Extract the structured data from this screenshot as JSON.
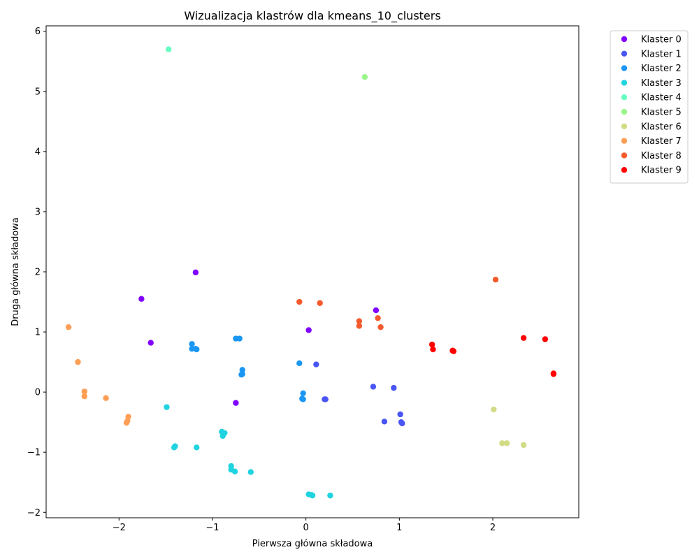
{
  "chart_data": {
    "type": "scatter",
    "title": "Wizualizacja klastrów dla kmeans_10_clusters",
    "xlabel": "Pierwsza główna składowa",
    "ylabel": "Druga główna składowa",
    "xlim": [
      -2.78,
      2.92
    ],
    "ylim": [
      -2.09,
      6.09
    ],
    "xticks": [
      -2,
      -1,
      0,
      1,
      2
    ],
    "xtick_labels": [
      "−2",
      "−1",
      "0",
      "1",
      "2"
    ],
    "yticks": [
      -2,
      -1,
      0,
      1,
      2,
      3,
      4,
      5,
      6
    ],
    "ytick_labels": [
      "−2",
      "−1",
      "0",
      "1",
      "2",
      "3",
      "4",
      "5",
      "6"
    ],
    "grid": false,
    "legend_position": "outside-top-right",
    "series": [
      {
        "name": "Klaster 0",
        "color": "#8000ff",
        "points": [
          [
            -1.18,
            1.99
          ],
          [
            -1.76,
            1.55
          ],
          [
            -1.66,
            0.82
          ],
          [
            0.75,
            1.36
          ],
          [
            0.03,
            1.03
          ],
          [
            -0.75,
            -0.18
          ]
        ]
      },
      {
        "name": "Klaster 1",
        "color": "#4a55f5",
        "points": [
          [
            0.11,
            0.46
          ],
          [
            0.72,
            0.09
          ],
          [
            0.94,
            0.07
          ],
          [
            0.2,
            -0.12
          ],
          [
            0.21,
            -0.12
          ],
          [
            1.01,
            -0.37
          ],
          [
            0.84,
            -0.49
          ],
          [
            1.02,
            -0.5
          ],
          [
            1.03,
            -0.52
          ]
        ]
      },
      {
        "name": "Klaster 2",
        "color": "#1a96f3",
        "points": [
          [
            -1.22,
            0.8
          ],
          [
            -1.22,
            0.72
          ],
          [
            -1.17,
            0.71
          ],
          [
            -1.18,
            0.72
          ],
          [
            -0.75,
            0.89
          ],
          [
            -0.71,
            0.89
          ],
          [
            -0.68,
            0.37
          ],
          [
            -0.69,
            0.29
          ],
          [
            -0.68,
            0.3
          ],
          [
            -0.07,
            0.48
          ],
          [
            -0.03,
            -0.02
          ],
          [
            -0.04,
            -0.11
          ],
          [
            -0.03,
            -0.12
          ]
        ]
      },
      {
        "name": "Klaster 3",
        "color": "#1fd4e0",
        "points": [
          [
            -1.49,
            -0.25
          ],
          [
            -1.41,
            -0.92
          ],
          [
            -1.4,
            -0.9
          ],
          [
            -1.17,
            -0.92
          ],
          [
            -0.9,
            -0.66
          ],
          [
            -0.87,
            -0.68
          ],
          [
            -0.89,
            -0.73
          ],
          [
            -0.8,
            -1.23
          ],
          [
            -0.8,
            -1.29
          ],
          [
            -0.76,
            -1.32
          ],
          [
            -0.59,
            -1.33
          ],
          [
            0.03,
            -1.7
          ],
          [
            0.06,
            -1.71
          ],
          [
            0.07,
            -1.72
          ],
          [
            0.26,
            -1.72
          ]
        ]
      },
      {
        "name": "Klaster 4",
        "color": "#66fcc2",
        "points": [
          [
            -1.47,
            5.7
          ]
        ]
      },
      {
        "name": "Klaster 5",
        "color": "#9cf58c",
        "points": [
          [
            0.63,
            5.24
          ]
        ]
      },
      {
        "name": "Klaster 6",
        "color": "#d2db85",
        "points": [
          [
            2.01,
            -0.29
          ],
          [
            2.1,
            -0.85
          ],
          [
            2.15,
            -0.85
          ],
          [
            2.33,
            -0.88
          ]
        ]
      },
      {
        "name": "Klaster 7",
        "color": "#ff9e55",
        "points": [
          [
            -2.54,
            1.08
          ],
          [
            -2.44,
            0.5
          ],
          [
            -2.37,
            0.01
          ],
          [
            -2.37,
            -0.07
          ],
          [
            -2.14,
            -0.1
          ],
          [
            -1.9,
            -0.41
          ],
          [
            -1.91,
            -0.48
          ],
          [
            -1.92,
            -0.51
          ]
        ]
      },
      {
        "name": "Klaster 8",
        "color": "#f55a2d",
        "points": [
          [
            2.03,
            1.87
          ],
          [
            -0.07,
            1.5
          ],
          [
            0.15,
            1.48
          ],
          [
            0.57,
            1.18
          ],
          [
            0.57,
            1.1
          ],
          [
            0.77,
            1.23
          ],
          [
            0.8,
            1.08
          ]
        ]
      },
      {
        "name": "Klaster 9",
        "color": "#ff0000",
        "points": [
          [
            1.35,
            0.79
          ],
          [
            1.36,
            0.71
          ],
          [
            1.57,
            0.69
          ],
          [
            1.58,
            0.68
          ],
          [
            2.33,
            0.9
          ],
          [
            2.56,
            0.88
          ],
          [
            2.65,
            0.31
          ],
          [
            2.65,
            0.3
          ]
        ]
      }
    ]
  }
}
